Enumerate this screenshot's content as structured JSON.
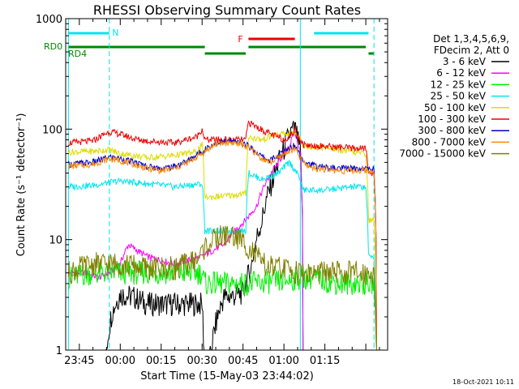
{
  "chart_data": {
    "type": "line",
    "title": "RHESSI Observing Summary Count Rates",
    "xlabel": "Start Time (15-May-03 23:44:02)",
    "ylabel": "Count Rate (s⁻¹ detector⁻¹)",
    "yscale": "log",
    "ylim": [
      1,
      1000
    ],
    "y_tick_labels": [
      "1",
      "10",
      "100",
      "1000"
    ],
    "x_range_minutes": [
      -20,
      98
    ],
    "x_tick_labels": [
      {
        "label": "23:45",
        "minute": -15
      },
      {
        "label": "00:00",
        "minute": 0
      },
      {
        "label": "00:15",
        "minute": 15
      },
      {
        "label": "00:30",
        "minute": 30
      },
      {
        "label": "00:45",
        "minute": 45
      },
      {
        "label": "01:00",
        "minute": 60
      },
      {
        "label": "01:15",
        "minute": 75
      }
    ],
    "legend_header": [
      "Det 1,3,4,5,6,9,",
      "FDecim 2, Att 0"
    ],
    "legend_position": "right",
    "footer_date": "18-Oct-2021 10:11",
    "flags": [
      {
        "name": "N",
        "color": "#00e5ee",
        "segments": [
          [
            -19,
            -4
          ],
          [
            71,
            91
          ]
        ]
      },
      {
        "name": "F",
        "color": "#ee0000",
        "segments": [
          [
            47,
            64
          ]
        ]
      },
      {
        "name": "RD0",
        "color": "#008800",
        "segments": [
          [
            -19,
            31
          ]
        ]
      },
      {
        "name": "RD4",
        "color": "#008800",
        "segments": [
          [
            31,
            46
          ],
          [
            47,
            90
          ],
          [
            91,
            93
          ]
        ]
      }
    ],
    "vlines": [
      {
        "minute": -19,
        "style": "solid",
        "color": "#00e5ee"
      },
      {
        "minute": -4,
        "style": "dashed",
        "color": "#00e5ee"
      },
      {
        "minute": 66,
        "style": "solid",
        "color": "#00e5ee"
      },
      {
        "minute": 93,
        "style": "dashed",
        "color": "#00e5ee"
      }
    ],
    "series": [
      {
        "name": "3 - 6 keV",
        "color": "#000000",
        "x": [
          -19,
          -12,
          -8,
          -6,
          -5,
          -3,
          0,
          5,
          10,
          20,
          30,
          31,
          38,
          42,
          45,
          48,
          52,
          56,
          60,
          62,
          64,
          66,
          67
        ],
        "y": [
          0,
          0,
          0,
          0,
          1.05,
          2.2,
          3.2,
          3.0,
          2.6,
          2.6,
          2.6,
          0,
          3.0,
          3.1,
          3.3,
          5.5,
          15,
          35,
          65,
          90,
          100,
          60,
          0
        ]
      },
      {
        "name": "6 - 12 keV",
        "color": "#ff00ff",
        "x": [
          -19,
          -12,
          -8,
          -4,
          0,
          3,
          6,
          10,
          15,
          20,
          25,
          30,
          34,
          38,
          42,
          46,
          50,
          54,
          58,
          62,
          64,
          66,
          67
        ],
        "y": [
          5,
          5,
          4.5,
          5,
          6,
          9,
          8,
          7,
          6.5,
          6,
          6.5,
          7,
          8,
          9,
          12,
          15,
          20,
          35,
          50,
          70,
          95,
          60,
          0
        ]
      },
      {
        "name": "12 - 25 keV",
        "color": "#00ee00",
        "x": [
          -19,
          -10,
          0,
          10,
          20,
          30,
          31,
          40,
          46,
          47,
          60,
          66,
          70,
          80,
          90,
          93,
          94
        ],
        "y": [
          4.5,
          5,
          5,
          5,
          5,
          5,
          4,
          4,
          4,
          4,
          4.2,
          4.5,
          4.5,
          4,
          4,
          4,
          0
        ]
      },
      {
        "name": "25 - 50 keV",
        "color": "#00e5ee",
        "x": [
          -19,
          -10,
          0,
          10,
          20,
          30,
          31,
          40,
          46,
          47,
          52,
          58,
          62,
          66,
          67,
          75,
          85,
          90,
          91,
          93,
          94
        ],
        "y": [
          30,
          31,
          34,
          32,
          30,
          32,
          12,
          12,
          12,
          40,
          35,
          40,
          50,
          35,
          28,
          28,
          30,
          30,
          7,
          7,
          0
        ]
      },
      {
        "name": "50 - 100 keV",
        "color": "#dddd00",
        "x": [
          -19,
          -10,
          -4,
          0,
          10,
          20,
          28,
          30,
          31,
          40,
          46,
          47,
          52,
          56,
          60,
          64,
          66,
          67,
          75,
          85,
          90,
          91,
          93,
          94
        ],
        "y": [
          62,
          63,
          65,
          60,
          55,
          58,
          62,
          72,
          24,
          25,
          26,
          85,
          80,
          88,
          90,
          92,
          85,
          70,
          68,
          62,
          60,
          15,
          15,
          0
        ]
      },
      {
        "name": "100 - 300 keV",
        "color": "#ee0000",
        "x": [
          -19,
          -10,
          -4,
          0,
          5,
          10,
          20,
          28,
          30,
          31,
          40,
          46,
          47,
          52,
          56,
          60,
          63,
          64,
          66,
          67,
          75,
          85,
          90,
          91,
          93,
          94
        ],
        "y": [
          75,
          78,
          95,
          90,
          82,
          78,
          75,
          85,
          100,
          80,
          80,
          80,
          115,
          98,
          88,
          80,
          90,
          100,
          80,
          72,
          70,
          67,
          67,
          40,
          40,
          0
        ]
      },
      {
        "name": "300 - 800 keV",
        "color": "#0000cc",
        "x": [
          -19,
          -10,
          -4,
          0,
          5,
          10,
          15,
          20,
          25,
          30,
          35,
          40,
          45,
          48,
          52,
          55,
          58,
          61,
          64,
          66,
          68,
          72,
          80,
          88,
          93,
          94
        ],
        "y": [
          48,
          50,
          56,
          54,
          50,
          46,
          44,
          46,
          52,
          63,
          75,
          78,
          74,
          68,
          56,
          52,
          58,
          65,
          72,
          58,
          50,
          46,
          44,
          44,
          44,
          0
        ]
      },
      {
        "name": "800 - 7000 keV",
        "color": "#ff8800",
        "x": [
          -19,
          -10,
          -4,
          0,
          5,
          10,
          15,
          20,
          25,
          30,
          35,
          40,
          45,
          48,
          52,
          55,
          58,
          61,
          64,
          66,
          68,
          72,
          80,
          88,
          93,
          94
        ],
        "y": [
          46,
          48,
          54,
          52,
          48,
          44,
          42,
          44,
          50,
          60,
          73,
          76,
          72,
          65,
          54,
          50,
          55,
          62,
          66,
          54,
          47,
          44,
          42,
          42,
          42,
          0
        ]
      },
      {
        "name": "7000 - 15000 keV",
        "color": "#808000",
        "x": [
          -19,
          -10,
          0,
          10,
          20,
          28,
          32,
          36,
          40,
          44,
          48,
          52,
          56,
          60,
          66,
          70,
          80,
          90,
          93,
          94
        ],
        "y": [
          5,
          6,
          6,
          5.5,
          5.5,
          6.5,
          9,
          10.5,
          11,
          10,
          8,
          6,
          5.5,
          5.5,
          5,
          5,
          5,
          5,
          5,
          0
        ]
      }
    ]
  }
}
